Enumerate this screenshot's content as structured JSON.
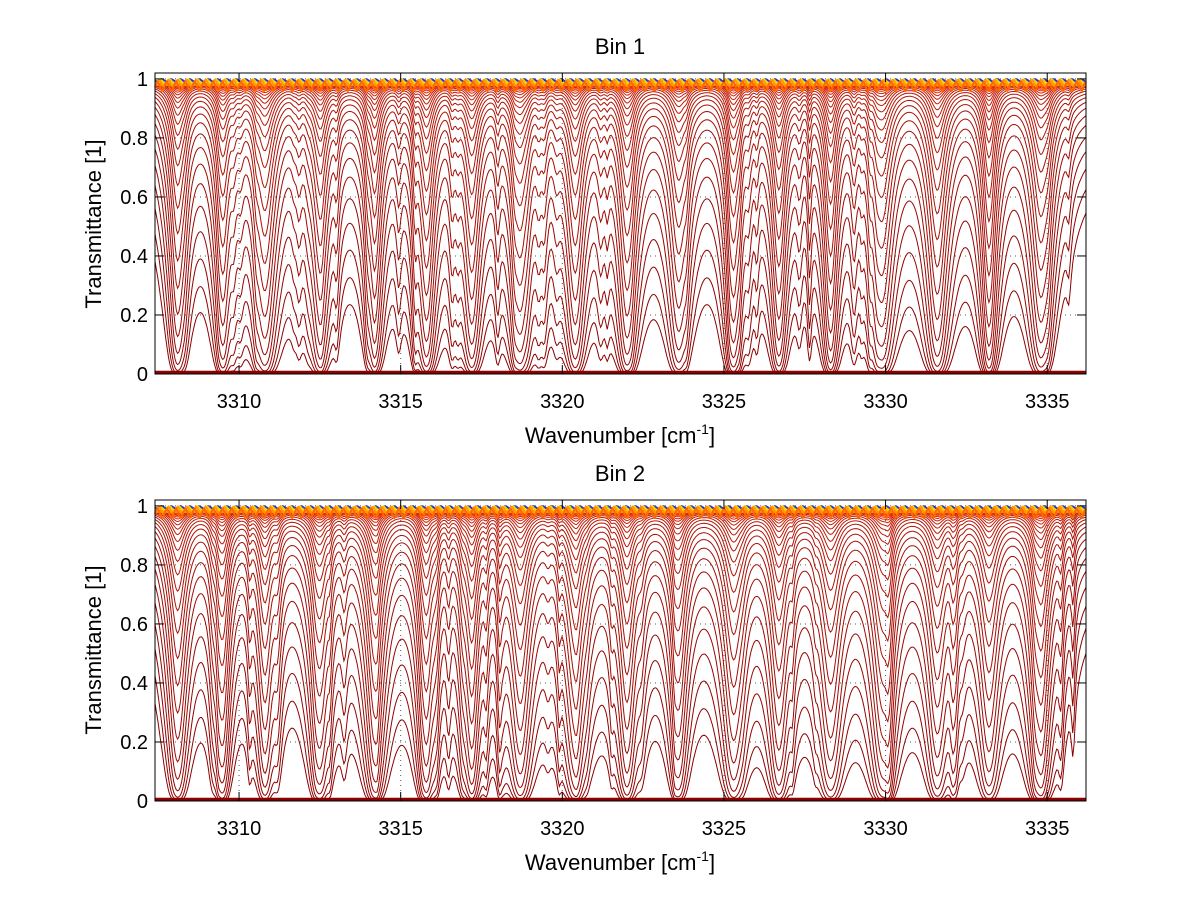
{
  "chart_data": [
    {
      "type": "line",
      "title": "Bin 1",
      "xlabel": "Wavenumber [cm",
      "xlabel_sup": "-1",
      "xlabel_end": "]",
      "ylabel": "Transmittance [1]",
      "xlim": [
        3307.4,
        3336.2
      ],
      "ylim": [
        0,
        1.02
      ],
      "xticks": [
        3310,
        3315,
        3320,
        3325,
        3330,
        3335
      ],
      "yticks": [
        0,
        0.2,
        0.4,
        0.6,
        0.8,
        1
      ],
      "xtick_labels": [
        "3310",
        "3315",
        "3320",
        "3325",
        "3330",
        "3335"
      ],
      "ytick_labels": [
        "0",
        "0.2",
        "0.4",
        "0.6",
        "0.8",
        "1"
      ],
      "grid": true,
      "absorption_lines_x": [
        3308.1,
        3309.5,
        3310.8,
        3312.5,
        3314.2,
        3315.8,
        3317.2,
        3318.7,
        3320.4,
        3322.0,
        3323.6,
        3325.3,
        3326.7,
        3328.3,
        3329.9,
        3331.6,
        3333.2,
        3334.8
      ],
      "series_count": 36,
      "colors": [
        "#8b0000",
        "#c41e0a",
        "#ff2a00",
        "#ff6600",
        "#ff9900",
        "#ffcc00",
        "#1f3fbf"
      ]
    },
    {
      "type": "line",
      "title": "Bin 2",
      "xlabel": "Wavenumber [cm",
      "xlabel_sup": "-1",
      "xlabel_end": "]",
      "ylabel": "Transmittance [1]",
      "xlim": [
        3307.4,
        3336.2
      ],
      "ylim": [
        0,
        1.02
      ],
      "xticks": [
        3310,
        3315,
        3320,
        3325,
        3330,
        3335
      ],
      "yticks": [
        0,
        0.2,
        0.4,
        0.6,
        0.8,
        1
      ],
      "xtick_labels": [
        "3310",
        "3315",
        "3320",
        "3325",
        "3330",
        "3335"
      ],
      "ytick_labels": [
        "0",
        "0.2",
        "0.4",
        "0.6",
        "0.8",
        "1"
      ],
      "grid": true,
      "absorption_lines_x": [
        3308.1,
        3309.5,
        3310.8,
        3312.5,
        3314.2,
        3315.8,
        3317.2,
        3318.7,
        3320.4,
        3322.0,
        3323.6,
        3325.3,
        3326.7,
        3328.3,
        3329.9,
        3331.6,
        3333.2,
        3334.8
      ],
      "series_count": 36,
      "colors": [
        "#8b0000",
        "#c41e0a",
        "#ff2a00",
        "#ff6600",
        "#ff9900",
        "#ffcc00",
        "#1f3fbf"
      ]
    }
  ]
}
